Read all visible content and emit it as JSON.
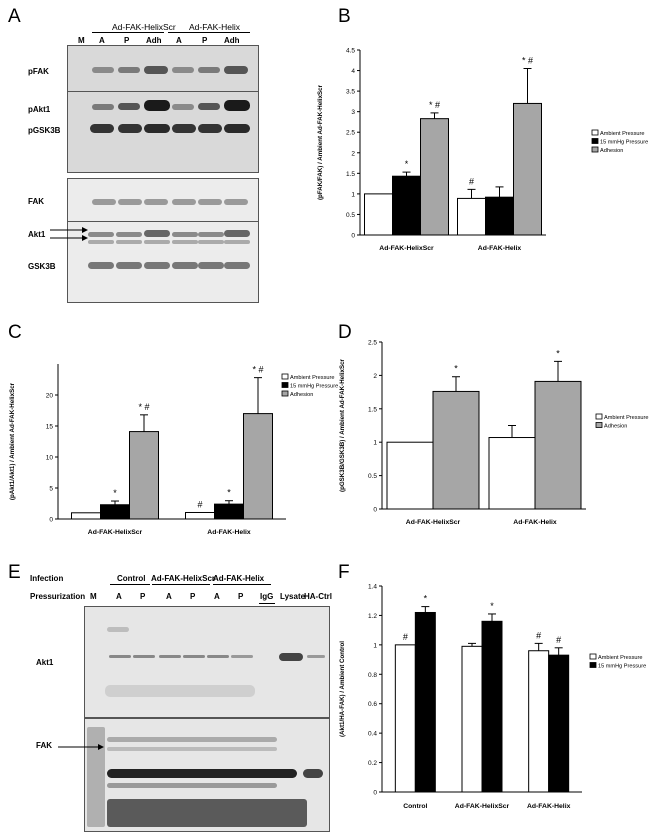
{
  "panels": {
    "a": "A",
    "b": "B",
    "c": "C",
    "d": "D",
    "e": "E",
    "f": "F"
  },
  "blot_a": {
    "group_labels": [
      "Ad-FAK-HelixScr",
      "Ad-FAK-Helix"
    ],
    "lane_labels": [
      "M",
      "A",
      "P",
      "Adh",
      "A",
      "P",
      "Adh"
    ],
    "row_labels": [
      "pFAK",
      "pAkt1",
      "pGSK3B",
      "FAK",
      "Akt1",
      "GSK3B"
    ]
  },
  "blot_e": {
    "infection_label": "Infection",
    "pressurization_label": "Pressurization",
    "group_labels": [
      "Control",
      "Ad-FAK-HelixScr",
      "Ad-FAK-Helix"
    ],
    "lane_labels": [
      "M",
      "A",
      "P",
      "A",
      "P",
      "A",
      "P",
      "IgG",
      "Lysate",
      "HA-Ctrl"
    ],
    "row_labels": [
      "Akt1",
      "FAK"
    ]
  },
  "chart_data": [
    {
      "panel": "B",
      "type": "bar",
      "categories": [
        "Ad-FAK-HelixScr",
        "Ad-FAK-Helix"
      ],
      "ylabel": "(pFAK/FAK) / Ambient Ad-FAK-HelixScr",
      "ylim": [
        0,
        4.5
      ],
      "yticks": [
        "0",
        "0.5",
        "1",
        "1.5",
        "2",
        "2.5",
        "3",
        "3.5",
        "4",
        "4.5"
      ],
      "legend_position": "right",
      "series": [
        {
          "name": "Ambient Pressure",
          "color": "#ffffff",
          "values": [
            1.0,
            0.89
          ],
          "errors": [
            0,
            0.22
          ],
          "annotations": [
            "",
            "#"
          ]
        },
        {
          "name": "15 mmHg Pressure",
          "color": "#000000",
          "values": [
            1.43,
            0.92
          ],
          "errors": [
            0.1,
            0.25
          ],
          "annotations": [
            "*",
            ""
          ]
        },
        {
          "name": "Adhesion",
          "color": "#a6a6a6",
          "values": [
            2.83,
            3.2
          ],
          "errors": [
            0.14,
            0.85
          ],
          "annotations": [
            "* #",
            "* #"
          ]
        }
      ]
    },
    {
      "panel": "C",
      "type": "bar",
      "categories": [
        "Ad-FAK-HelixScr",
        "Ad-FAK-Helix"
      ],
      "ylabel": "(pAkt1/Akt1) / Ambient Ad-FAK-HelixScr",
      "ylim": [
        0,
        25
      ],
      "yticks": [
        "0",
        "5",
        "10",
        "15",
        "20"
      ],
      "legend_position": "right",
      "series": [
        {
          "name": "Ambient Pressure",
          "color": "#ffffff",
          "values": [
            1.0,
            1.05
          ],
          "errors": [
            0,
            0
          ],
          "annotations": [
            "",
            "#"
          ]
        },
        {
          "name": "15 mmHg Pressure",
          "color": "#000000",
          "values": [
            2.3,
            2.4
          ],
          "errors": [
            0.6,
            0.55
          ],
          "annotations": [
            "*",
            "*"
          ]
        },
        {
          "name": "Adhesion",
          "color": "#a6a6a6",
          "values": [
            14.1,
            17.0
          ],
          "errors": [
            2.7,
            5.8
          ],
          "annotations": [
            "* #",
            "* #"
          ]
        }
      ]
    },
    {
      "panel": "D",
      "type": "bar",
      "categories": [
        "Ad-FAK-HelixScr",
        "Ad-FAK-Helix"
      ],
      "ylabel": "(pGSK3B/GSK3B) / Ambient Ad-FAK-HelixScr",
      "ylim": [
        0,
        2.5
      ],
      "yticks": [
        "0",
        "0.5",
        "1",
        "1.5",
        "2",
        "2.5"
      ],
      "legend_position": "right",
      "series": [
        {
          "name": "Ambient Pressure",
          "color": "#ffffff",
          "values": [
            1.0,
            1.07
          ],
          "errors": [
            0,
            0.18
          ],
          "annotations": [
            "",
            ""
          ]
        },
        {
          "name": "Adhesion",
          "color": "#a6a6a6",
          "values": [
            1.76,
            1.91
          ],
          "errors": [
            0.22,
            0.3
          ],
          "annotations": [
            "*",
            "*"
          ]
        }
      ]
    },
    {
      "panel": "F",
      "type": "bar",
      "categories": [
        "Control",
        "Ad-FAK-HelixScr",
        "Ad-FAK-Helix"
      ],
      "ylabel": "(Akt1/HA-FAK) / Ambient Control",
      "ylim": [
        0,
        1.4
      ],
      "yticks": [
        "0",
        "0.2",
        "0.4",
        "0.6",
        "0.8",
        "1",
        "1.2",
        "1.4"
      ],
      "legend_position": "right",
      "series": [
        {
          "name": "Ambient Pressure",
          "color": "#ffffff",
          "values": [
            1.0,
            0.99,
            0.96
          ],
          "errors": [
            0,
            0.02,
            0.05
          ],
          "annotations": [
            "#",
            "",
            "#"
          ]
        },
        {
          "name": "15 mmHg Pressure",
          "color": "#000000",
          "values": [
            1.22,
            1.16,
            0.93
          ],
          "errors": [
            0.04,
            0.05,
            0.05
          ],
          "annotations": [
            "*",
            "*",
            "#"
          ]
        }
      ]
    }
  ]
}
